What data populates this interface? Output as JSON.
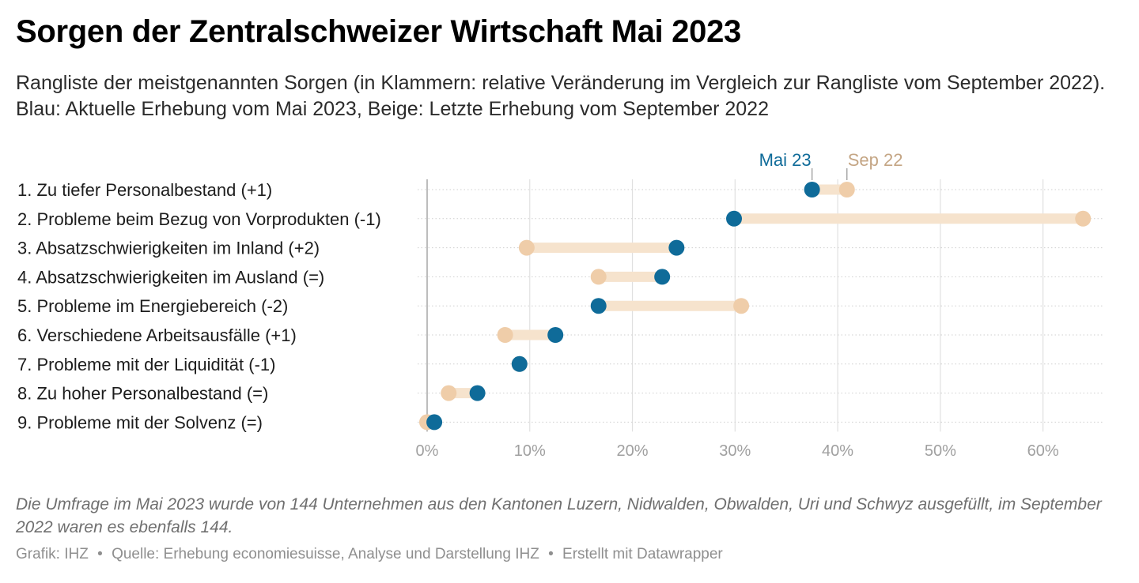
{
  "title": "Sorgen der Zentralschweizer Wirtschaft Mai 2023",
  "subtitle": "Rangliste der meistgenannten Sorgen (in Klammern: relative Veränderung im Vergleich zur Rangliste vom September 2022). Blau: Aktuelle Erhebung vom Mai 2023, Beige: Letzte Erhebung vom September 2022",
  "notes": "Die Umfrage im Mai 2023 wurde von 144 Unternehmen aus den Kantonen Luzern, Nidwalden, Obwalden, Uri und Schwyz ausgefüllt, im September 2022 waren es ebenfalls 144.",
  "footer": {
    "grafik": "Grafik: IHZ",
    "quelle": "Quelle: Erhebung economiesuisse, Analyse und Darstellung IHZ",
    "tool": "Erstellt mit Datawrapper",
    "separator": "•"
  },
  "colors": {
    "mai23": "#0f6b99",
    "sep22": "#efcda9",
    "range": "#f6e3cd",
    "sep22_label": "#c4a584",
    "grid": "#e0e0e0",
    "axis": "#bdbdbd",
    "tick_label": "#a0a0a0"
  },
  "chart_data": {
    "type": "range-dot",
    "series": [
      {
        "name": "Mai 23",
        "key": "mai23"
      },
      {
        "name": "Sep 22",
        "key": "sep22"
      }
    ],
    "xlim": [
      0,
      65
    ],
    "x_ticks": [
      0,
      10,
      20,
      30,
      40,
      50,
      60
    ],
    "x_tick_labels": [
      "0%",
      "10%",
      "20%",
      "30%",
      "40%",
      "50%",
      "60%"
    ],
    "grid": true,
    "rows": [
      {
        "label": "1. Zu tiefer Personalbestand (+1)",
        "mai23": 37.5,
        "sep22": 40.9
      },
      {
        "label": "2. Probleme beim Bezug von Vorprodukten (-1)",
        "mai23": 29.9,
        "sep22": 63.9
      },
      {
        "label": "3. Absatzschwierigkeiten im Inland (+2)",
        "mai23": 24.3,
        "sep22": 9.7
      },
      {
        "label": "4. Absatzschwierigkeiten im Ausland (=)",
        "mai23": 22.9,
        "sep22": 16.7
      },
      {
        "label": "5. Probleme im Energiebereich (-2)",
        "mai23": 16.7,
        "sep22": 30.6
      },
      {
        "label": "6. Verschiedene Arbeitsausfälle (+1)",
        "mai23": 12.5,
        "sep22": 7.6
      },
      {
        "label": "7. Probleme mit der Liquidität (-1)",
        "mai23": 9.0,
        "sep22": 9.0
      },
      {
        "label": "8. Zu hoher Personalbestand (=)",
        "mai23": 4.9,
        "sep22": 2.1
      },
      {
        "label": "9. Probleme mit der Solvenz (=)",
        "mai23": 0.7,
        "sep22": 0.0
      }
    ]
  }
}
